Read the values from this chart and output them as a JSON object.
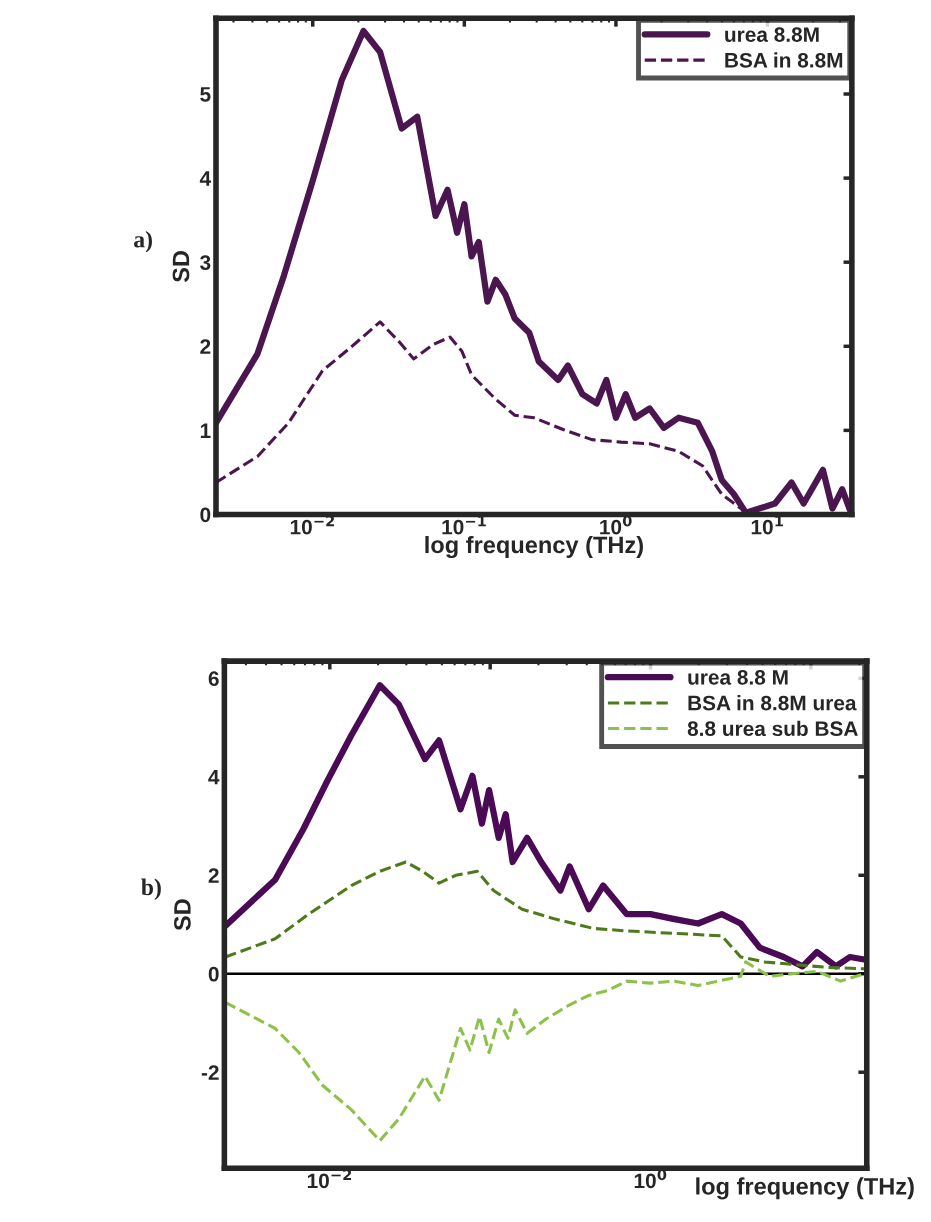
{
  "chart_data": [
    {
      "type": "line",
      "title": "a)",
      "xlabel": "log frequency (THz)",
      "ylabel": "SD",
      "log": "x",
      "xlim": [
        0.0023,
        36
      ],
      "ylim": [
        0,
        5.9
      ],
      "xticks": [
        {
          "value": 0.01,
          "label": "10$^{−2}$"
        },
        {
          "value": 0.1,
          "label": "10$^{−1}$"
        },
        {
          "value": 1,
          "label": "10$^{0}$"
        },
        {
          "value": 10,
          "label": "10$^{1}$"
        }
      ],
      "yticks": [
        0,
        1,
        2,
        3,
        4,
        5
      ],
      "legend": "top right",
      "grid": false,
      "series": [
        {
          "name": "urea 8.8M",
          "color": "#4b1650",
          "line_style": "solid",
          "x": [
            0.0023,
            0.00432,
            0.00645,
            0.01,
            0.0155,
            0.0216,
            0.0278,
            0.0386,
            0.0489,
            0.0646,
            0.0775,
            0.0896,
            0.1,
            0.1116,
            0.1245,
            0.142,
            0.161,
            0.186,
            0.215,
            0.268,
            0.31,
            0.416,
            0.482,
            0.6,
            0.746,
            0.865,
            1.0,
            1.16,
            1.34,
            1.67,
            2.07,
            2.59,
            3.47,
            4.32,
            4.99,
            6.0,
            7.2,
            11.2,
            14.4,
            17.3,
            23.2,
            26.8,
            31.1,
            35
          ],
          "values": [
            1.09,
            1.91,
            2.84,
            3.97,
            5.16,
            5.75,
            5.5,
            4.59,
            4.73,
            3.55,
            3.86,
            3.35,
            3.69,
            3.07,
            3.24,
            2.53,
            2.79,
            2.62,
            2.33,
            2.16,
            1.82,
            1.6,
            1.77,
            1.43,
            1.32,
            1.6,
            1.15,
            1.43,
            1.15,
            1.26,
            1.03,
            1.15,
            1.09,
            0.75,
            0.41,
            0.24,
            0.02,
            0.13,
            0.38,
            0.13,
            0.53,
            0.07,
            0.3,
            0.05
          ]
        },
        {
          "name": "BSA in 8.8M",
          "color": "#4b1650",
          "line_style": "dashed",
          "x": [
            0.0023,
            0.00432,
            0.00693,
            0.0116,
            0.0179,
            0.0278,
            0.0373,
            0.0464,
            0.0622,
            0.0804,
            0.0964,
            0.1116,
            0.161,
            0.215,
            0.288,
            0.448,
            0.694,
            1.08,
            1.67,
            2.59,
            3.72,
            4.99,
            6.68
          ],
          "values": [
            0.38,
            0.69,
            1.09,
            1.71,
            1.99,
            2.29,
            2.05,
            1.85,
            2.02,
            2.11,
            1.94,
            1.66,
            1.37,
            1.18,
            1.15,
            1.01,
            0.89,
            0.86,
            0.84,
            0.75,
            0.58,
            0.24,
            0.07
          ]
        }
      ]
    },
    {
      "type": "line",
      "title": "b)",
      "xlabel": "log frequency (THz)",
      "ylabel": "SD",
      "log": "x",
      "xlim": [
        0.0022,
        22.3
      ],
      "ylim": [
        -3.95,
        6.35
      ],
      "xticks": [
        {
          "value": 0.01,
          "label": "10$^{−2}$"
        },
        {
          "value": 0.1,
          "label": null
        },
        {
          "value": 1,
          "label": "10$^{0}$"
        },
        {
          "value": 10,
          "label": null
        }
      ],
      "yticks": [
        -2,
        0,
        2,
        4,
        6
      ],
      "legend": "top right",
      "grid": false,
      "ref_lines": [
        {
          "axis": "y",
          "value": 0,
          "color": "#000000",
          "line_style": "solid"
        }
      ],
      "series": [
        {
          "name": "urea 8.8 M",
          "color": "#4b0a55",
          "line_style": "solid",
          "x": [
            0.00223,
            0.00456,
            0.00687,
            0.00966,
            0.0136,
            0.0205,
            0.0269,
            0.0392,
            0.048,
            0.0653,
            0.0775,
            0.0888,
            0.0984,
            0.113,
            0.125,
            0.138,
            0.17,
            0.208,
            0.274,
            0.313,
            0.412,
            0.506,
            0.711,
            1,
            1.41,
            1.98,
            2.78,
            3.65,
            4.8,
            6.76,
            8.87,
            10.9,
            14.3,
            17.5,
            21.5
          ],
          "values": [
            0.97,
            1.91,
            2.95,
            3.92,
            4.84,
            5.86,
            5.47,
            4.36,
            4.74,
            3.34,
            4.02,
            3.05,
            3.73,
            2.76,
            3.24,
            2.27,
            2.76,
            2.27,
            1.69,
            2.18,
            1.31,
            1.79,
            1.21,
            1.21,
            1.11,
            1.02,
            1.21,
            1.02,
            0.53,
            0.34,
            0.15,
            0.44,
            0.15,
            0.34,
            0.29
          ]
        },
        {
          "name": "BSA in 8.8M urea",
          "color": "#4d7a1a",
          "line_style": "dashed",
          "x": [
            0.00223,
            0.00456,
            0.00736,
            0.0136,
            0.0205,
            0.0298,
            0.0379,
            0.048,
            0.061,
            0.083,
            0.105,
            0.158,
            0.255,
            0.441,
            0.711,
            1.41,
            2.78,
            3.65,
            5.14,
            7.74,
            12.5,
            21.5
          ],
          "values": [
            0.34,
            0.71,
            1.21,
            1.79,
            2.08,
            2.27,
            2.08,
            1.84,
            2.0,
            2.08,
            1.69,
            1.31,
            1.11,
            0.92,
            0.87,
            0.82,
            0.77,
            0.34,
            0.24,
            0.19,
            0.13,
            0.1
          ]
        },
        {
          "name": "8.8 urea sub BSA",
          "color": "#8cc24a",
          "line_style": "dashed",
          "x": [
            0.00223,
            0.00456,
            0.00642,
            0.00903,
            0.0136,
            0.0205,
            0.0269,
            0.0392,
            0.048,
            0.0653,
            0.0748,
            0.0858,
            0.0984,
            0.113,
            0.129,
            0.143,
            0.17,
            0.223,
            0.313,
            0.412,
            0.541,
            0.711,
            1,
            1.41,
            1.98,
            3.65,
            3.92,
            5.51,
            10.9,
            15.3,
            21.5
          ],
          "values": [
            -0.58,
            -1.11,
            -1.6,
            -2.27,
            -2.76,
            -3.39,
            -2.95,
            -2.08,
            -2.57,
            -1.11,
            -1.55,
            -0.87,
            -1.6,
            -0.92,
            -1.31,
            -0.73,
            -1.21,
            -0.92,
            -0.63,
            -0.44,
            -0.34,
            -0.15,
            -0.19,
            -0.15,
            -0.24,
            -0.05,
            0.24,
            -0.05,
            0.05,
            -0.15,
            0
          ]
        }
      ]
    }
  ]
}
